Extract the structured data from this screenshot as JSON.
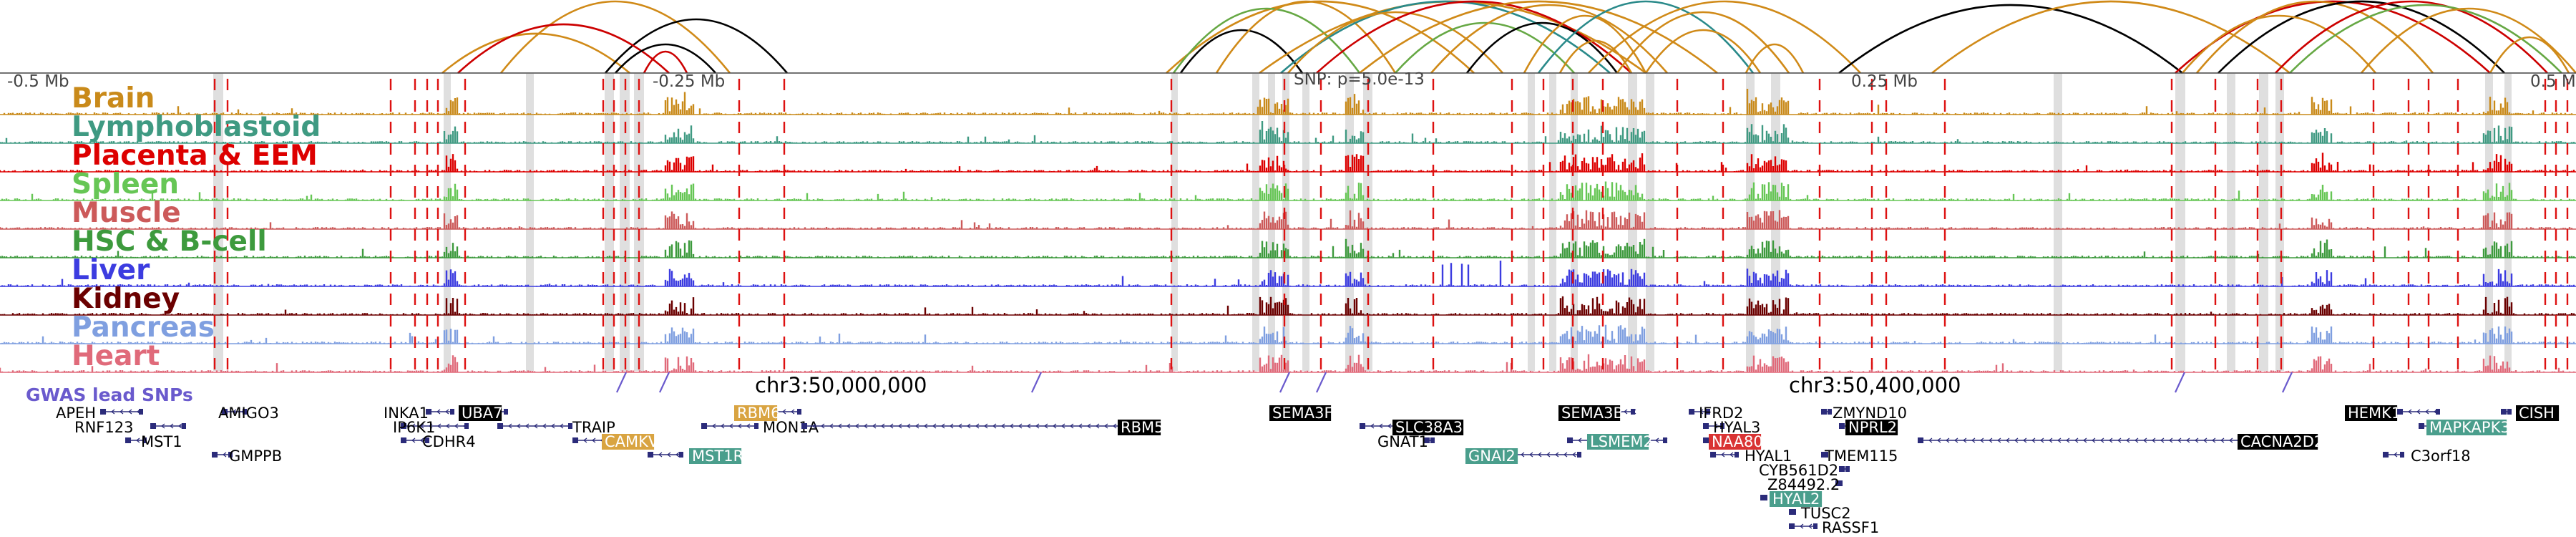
{
  "header": {
    "left_coord": "-0.5 Mb",
    "left_mid_coord": "-0.25 Mb",
    "center_label": "SNP: p=5.0e-13",
    "right_mid_coord": "0.25 Mb",
    "right_coord": "0.5 Mb"
  },
  "tracks": [
    {
      "name": "Brain",
      "color": "#c98a1a"
    },
    {
      "name": "Lymphoblastoid",
      "color": "#3f9a82"
    },
    {
      "name": "Placenta & EEM",
      "color": "#dd0000"
    },
    {
      "name": "Spleen",
      "color": "#66c655"
    },
    {
      "name": "Muscle",
      "color": "#cc5a5a"
    },
    {
      "name": "HSC & B-cell",
      "color": "#3d9a3d"
    },
    {
      "name": "Liver",
      "color": "#3c3ce0"
    },
    {
      "name": "Kidney",
      "color": "#6b0000"
    },
    {
      "name": "Pancreas",
      "color": "#7f9fe0"
    },
    {
      "name": "Heart",
      "color": "#e06a7a"
    }
  ],
  "gwas": {
    "label": "GWAS lead SNPs",
    "label_color": "#6a5acd",
    "chr_label_1": "chr3:50,000,000",
    "chr_label_2": "chr3:50,400,000"
  },
  "genes": [
    {
      "name": "APEH",
      "style": "plain"
    },
    {
      "name": "AMIGO3",
      "style": "plain"
    },
    {
      "name": "RNF123",
      "style": "plain"
    },
    {
      "name": "MST1",
      "style": "plain"
    },
    {
      "name": "GMPPB",
      "style": "plain"
    },
    {
      "name": "INKA1",
      "style": "plain"
    },
    {
      "name": "UBA7",
      "style": "black"
    },
    {
      "name": "IP6K1",
      "style": "plain"
    },
    {
      "name": "CDHR4",
      "style": "plain"
    },
    {
      "name": "TRAIP",
      "style": "plain"
    },
    {
      "name": "CAMKV",
      "style": "orange"
    },
    {
      "name": "MST1R",
      "style": "teal"
    },
    {
      "name": "RBM6",
      "style": "orange"
    },
    {
      "name": "MON1A",
      "style": "plain"
    },
    {
      "name": "RBM5",
      "style": "black"
    },
    {
      "name": "SEMA3F",
      "style": "black"
    },
    {
      "name": "SLC38A3",
      "style": "black"
    },
    {
      "name": "GNAT1",
      "style": "plain"
    },
    {
      "name": "GNAI2",
      "style": "teal"
    },
    {
      "name": "SEMA3B",
      "style": "black"
    },
    {
      "name": "LSMEM2",
      "style": "teal"
    },
    {
      "name": "IFRD2",
      "style": "plain"
    },
    {
      "name": "HYAL3",
      "style": "plain"
    },
    {
      "name": "NAA80",
      "style": "red"
    },
    {
      "name": "HYAL1",
      "style": "plain"
    },
    {
      "name": "ZMYND10",
      "style": "plain"
    },
    {
      "name": "NPRL2",
      "style": "black"
    },
    {
      "name": "CYB561D2",
      "style": "plain"
    },
    {
      "name": "Z84492.2",
      "style": "plain"
    },
    {
      "name": "HYAL2",
      "style": "teal"
    },
    {
      "name": "TMEM115",
      "style": "plain"
    },
    {
      "name": "TUSC2",
      "style": "plain"
    },
    {
      "name": "RASSF1",
      "style": "plain"
    },
    {
      "name": "CACNA2D2",
      "style": "black"
    },
    {
      "name": "HEMK1",
      "style": "black"
    },
    {
      "name": "CISH",
      "style": "black"
    },
    {
      "name": "MAPKAPK3",
      "style": "teal"
    },
    {
      "name": "C3orf18",
      "style": "plain"
    }
  ],
  "colors": {
    "red_marker": "#dd1111",
    "grey_band": "#d9d9d9",
    "gene_body": "#2b2b7a",
    "gene_black_bg": "#000000",
    "gene_orange_bg": "#d9a441",
    "gene_teal_bg": "#4a9e8c",
    "gene_red_bg": "#d93333",
    "arc_orange": "#d08a18",
    "arc_black": "#000000",
    "arc_red": "#cc0000",
    "arc_green": "#66a844",
    "arc_teal": "#2a8a8a"
  }
}
